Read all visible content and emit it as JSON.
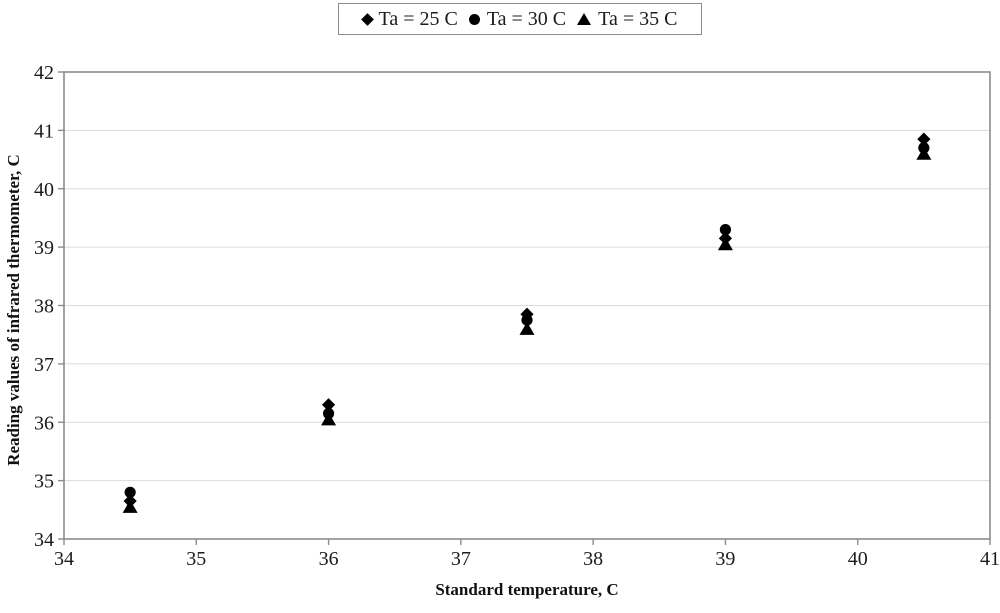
{
  "figure": {
    "background": "#ffffff",
    "plot_border_color": "#8c8c8c",
    "gridline_color": "#dcdcdc",
    "marker_color": "#000000",
    "text_color": "#1c1c1c"
  },
  "chart_data": {
    "type": "scatter",
    "title": "",
    "xlabel": "Standard temperature, C",
    "ylabel": "Reading values of infrared thermometer, C",
    "xlim": [
      34,
      41
    ],
    "ylim": [
      34,
      42
    ],
    "x_ticks": [
      34,
      35,
      36,
      37,
      38,
      39,
      40,
      41
    ],
    "y_ticks": [
      34,
      35,
      36,
      37,
      38,
      39,
      40,
      41,
      42
    ],
    "grid": "horizontal-only",
    "legend_position": "top-center",
    "x": [
      34.5,
      36.0,
      37.5,
      39.0,
      40.5
    ],
    "series": [
      {
        "name": "Ta = 25 C",
        "marker": "diamond",
        "values": [
          34.65,
          36.3,
          37.85,
          39.15,
          40.85
        ]
      },
      {
        "name": "Ta = 30 C",
        "marker": "circle",
        "values": [
          34.8,
          36.15,
          37.75,
          39.3,
          40.7
        ]
      },
      {
        "name": "Ta = 35 C",
        "marker": "triangle",
        "values": [
          34.55,
          36.05,
          37.6,
          39.05,
          40.6
        ]
      }
    ]
  }
}
